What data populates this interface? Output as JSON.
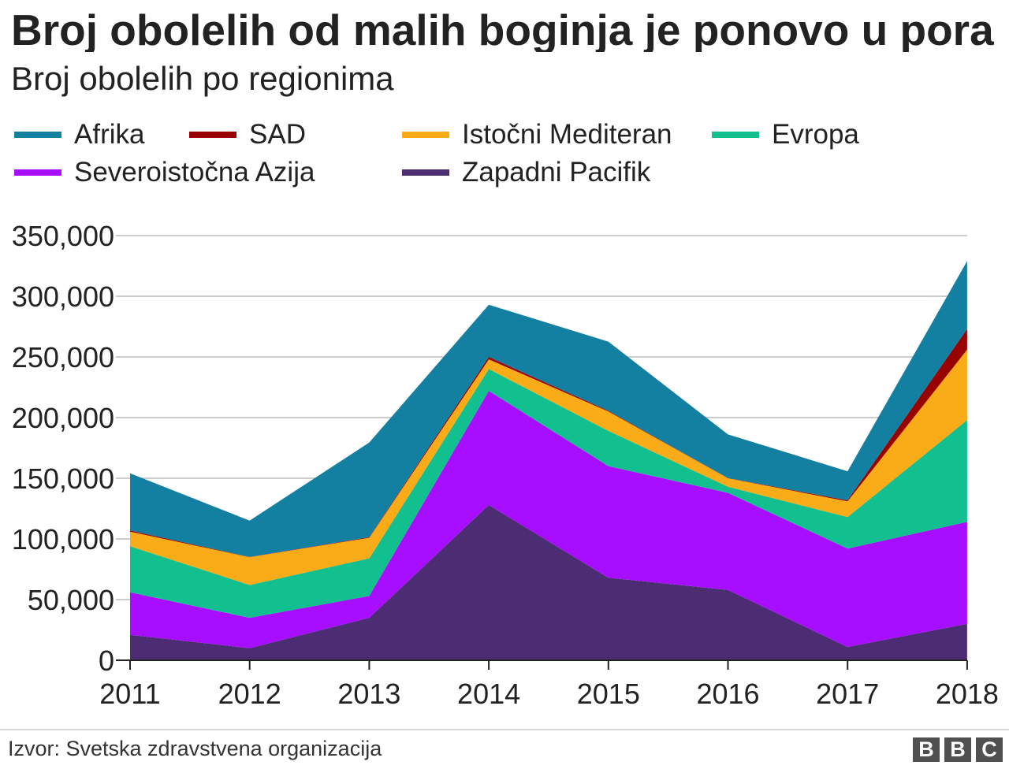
{
  "chart_data": {
    "type": "area",
    "stacked": true,
    "title": "Broj obolelih od malih boginja je ponovo u pora",
    "subtitle": "Broj obolelih po regionima",
    "categories": [
      "2011",
      "2012",
      "2013",
      "2014",
      "2015",
      "2016",
      "2017",
      "2018"
    ],
    "ylim": [
      0,
      350000
    ],
    "yticks": [
      0,
      50000,
      100000,
      150000,
      200000,
      250000,
      300000,
      350000
    ],
    "ytick_labels": [
      "0",
      "50,000",
      "100,000",
      "150,000",
      "200,000",
      "250,000",
      "300,000",
      "350,000"
    ],
    "grid": true,
    "legend_position": "top",
    "series": [
      {
        "name": "Afrika",
        "color": "#1380A1",
        "values": [
          47000,
          30000,
          78000,
          43000,
          57000,
          36000,
          24000,
          56000
        ]
      },
      {
        "name": "SAD",
        "color": "#990000",
        "values": [
          1000,
          100,
          500,
          2000,
          600,
          100,
          800,
          17000
        ]
      },
      {
        "name": "Istočni Mediteran",
        "color": "#FAAB18",
        "values": [
          12000,
          23000,
          17000,
          8000,
          16000,
          7000,
          13000,
          58000
        ]
      },
      {
        "name": "Evropa",
        "color": "#12BF8F",
        "values": [
          38000,
          27000,
          31000,
          18000,
          29000,
          5000,
          26000,
          84000
        ]
      },
      {
        "name": "Severoistočna Azija",
        "color": "#A70DFF",
        "values": [
          35000,
          25000,
          18000,
          94000,
          92000,
          80000,
          81000,
          84000
        ]
      },
      {
        "name": "Zapadni Pacifik",
        "color": "#4C2C72",
        "values": [
          21000,
          10000,
          35000,
          128000,
          68000,
          58000,
          11000,
          30000
        ]
      }
    ]
  },
  "footer": {
    "source": "Izvor: Svetska zdravstvena organizacija",
    "logo_letters": [
      "B",
      "B",
      "C"
    ]
  }
}
